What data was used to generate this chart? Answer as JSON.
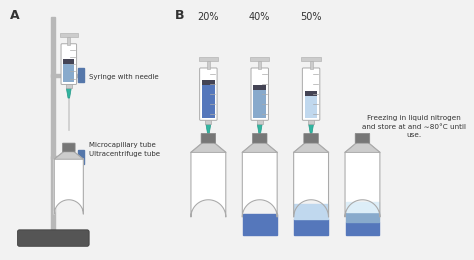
{
  "panel_A_label": "A",
  "panel_B_label": "B",
  "syringe_label": "Syringe with needle",
  "microcap_label": "Microcapillary tube",
  "ultracentrifuge_label": "Ultracentrifuge tube",
  "concentrations": [
    "20%",
    "40%",
    "50%"
  ],
  "freeze_text": "Freezing in liquid nitrogen\nand store at and ∼80°C until\nuse.",
  "bg_color": "#f2f2f2",
  "white": "#ffffff",
  "blue_dark": "#5577bb",
  "blue_mid": "#88aacc",
  "blue_light": "#c0d8ee",
  "blue_vlight": "#ddeef8",
  "teal": "#33b5a0",
  "dark_teal": "#229988",
  "gray_dark": "#888888",
  "gray_mid": "#aaaaaa",
  "gray_light": "#cccccc",
  "gray_vlight": "#e0e0e0",
  "stand_gray": "#b8b8b8",
  "clamp_blue": "#5577aa",
  "base_dark": "#555555",
  "black": "#333333",
  "dark_piston": "#444455",
  "cap_dark": "#777777"
}
